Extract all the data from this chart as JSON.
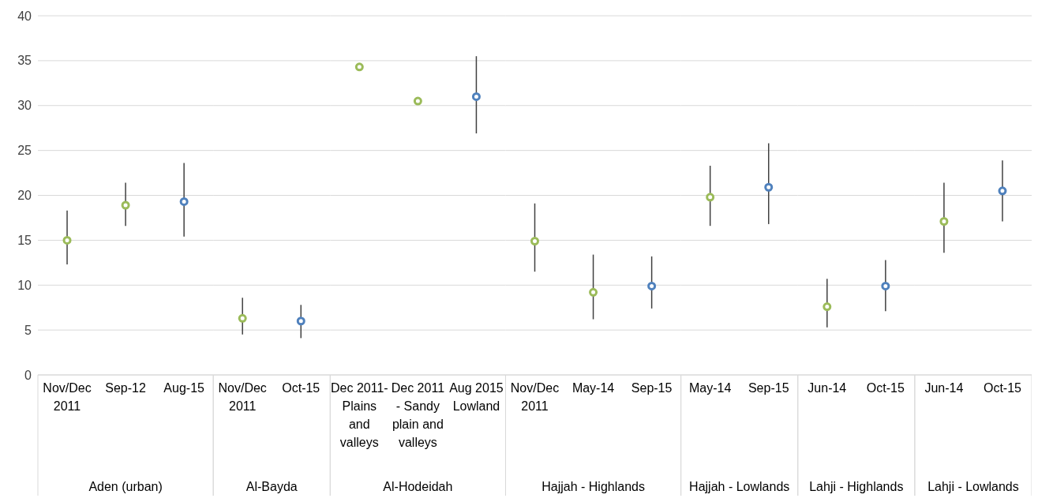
{
  "chart_data": [
    {
      "type": "scatter",
      "title": "Aden (urban)",
      "categories": [
        "Nov/Dec 2011",
        "Sep-12",
        "Aug-15"
      ],
      "series": [
        {
          "color": "#9bbb59",
          "values": [
            15.0,
            18.9,
            null
          ],
          "errors": [
            [
              12.3,
              18.3
            ],
            [
              16.6,
              21.4
            ],
            null
          ]
        },
        {
          "color": "#4f81bd",
          "values": [
            null,
            null,
            19.3
          ],
          "errors": [
            null,
            null,
            [
              15.4,
              23.6
            ]
          ]
        }
      ],
      "ylim": [
        0,
        40
      ],
      "yticks": [
        0,
        5,
        10,
        15,
        20,
        25,
        30,
        35,
        40
      ],
      "grid": "y",
      "marker": "circle"
    },
    {
      "type": "scatter",
      "title": "Al-Bayda",
      "categories": [
        "Nov/Dec 2011",
        "Oct-15"
      ],
      "series": [
        {
          "color": "#9bbb59",
          "values": [
            6.3,
            null
          ],
          "errors": [
            [
              4.5,
              8.6
            ],
            null
          ]
        },
        {
          "color": "#4f81bd",
          "values": [
            null,
            6.0
          ],
          "errors": [
            null,
            [
              4.1,
              7.8
            ]
          ]
        }
      ],
      "ylim": [
        0,
        40
      ],
      "yticks": [
        0,
        5,
        10,
        15,
        20,
        25,
        30,
        35,
        40
      ],
      "grid": "y",
      "marker": "circle",
      "tick_labels": "x"
    },
    {
      "type": "scatter",
      "title": "Al-Hodeidah",
      "categories": [
        "Dec 2011-Plains and valleys",
        "Dec 2011 - Sandy plain and valleys",
        "Aug 2015 Lowland"
      ],
      "series": [
        {
          "color": "#9bbb59",
          "values": [
            34.3,
            30.5,
            null
          ],
          "errors": [
            null,
            null,
            null
          ]
        },
        {
          "color": "#4f81bd",
          "values": [
            null,
            null,
            31.0
          ],
          "errors": [
            null,
            null,
            [
              26.9,
              35.5
            ]
          ]
        }
      ],
      "ylim": [
        0,
        40
      ],
      "yticks": [
        0,
        5,
        10,
        15,
        20,
        25,
        30,
        35,
        40
      ],
      "grid": "y",
      "marker": "circle",
      "tick_labels": "x"
    },
    {
      "type": "scatter",
      "title": "Hajjah - Highlands",
      "categories": [
        "Nov/Dec 2011",
        "May-14",
        "Sep-15"
      ],
      "series": [
        {
          "color": "#9bbb59",
          "values": [
            14.9,
            9.2,
            null
          ],
          "errors": [
            [
              11.5,
              19.1
            ],
            [
              6.2,
              13.4
            ],
            null
          ]
        },
        {
          "color": "#4f81bd",
          "values": [
            null,
            null,
            9.9
          ],
          "errors": [
            null,
            null,
            [
              7.4,
              13.2
            ]
          ]
        }
      ],
      "ylim": [
        0,
        40
      ],
      "yticks": [
        0,
        5,
        10,
        15,
        20,
        25,
        30,
        35,
        40
      ],
      "grid": "y",
      "marker": "circle",
      "tick_labels": "x"
    },
    {
      "type": "scatter",
      "title": "Hajjah - Lowlands",
      "categories": [
        "May-14",
        "Sep-15"
      ],
      "series": [
        {
          "color": "#9bbb59",
          "values": [
            19.8,
            null
          ],
          "errors": [
            [
              16.6,
              23.3
            ],
            null
          ]
        },
        {
          "color": "#4f81bd",
          "values": [
            null,
            20.9
          ],
          "errors": [
            null,
            [
              16.8,
              25.8
            ]
          ]
        }
      ],
      "ylim": [
        0,
        40
      ],
      "yticks": [
        0,
        5,
        10,
        15,
        20,
        25,
        30,
        35,
        40
      ],
      "grid": "y",
      "marker": "circle",
      "tick_labels": "x"
    },
    {
      "type": "scatter",
      "title": "Lahji - Highlands",
      "categories": [
        "Jun-14",
        "Oct-15"
      ],
      "series": [
        {
          "color": "#9bbb59",
          "values": [
            7.6,
            null
          ],
          "errors": [
            [
              5.3,
              10.7
            ],
            null
          ]
        },
        {
          "color": "#4f81bd",
          "values": [
            null,
            9.9
          ],
          "errors": [
            null,
            [
              7.1,
              12.8
            ]
          ]
        }
      ],
      "ylim": [
        0,
        40
      ],
      "yticks": [
        0,
        5,
        10,
        15,
        20,
        25,
        30,
        35,
        40
      ],
      "grid": "y",
      "marker": "circle",
      "tick_labels": "x"
    },
    {
      "type": "scatter",
      "title": "Lahji - Lowlands",
      "categories": [
        "Jun-14",
        "Oct-15"
      ],
      "series": [
        {
          "color": "#9bbb59",
          "values": [
            17.1,
            null
          ],
          "errors": [
            [
              13.6,
              21.4
            ],
            null
          ]
        },
        {
          "color": "#4f81bd",
          "values": [
            null,
            20.5
          ],
          "errors": [
            null,
            [
              17.1,
              23.9
            ]
          ]
        }
      ],
      "ylim": [
        0,
        40
      ],
      "yticks": [
        0,
        5,
        10,
        15,
        20,
        25,
        30,
        35,
        40
      ],
      "grid": "y",
      "marker": "circle",
      "tick_labels": "x"
    }
  ]
}
